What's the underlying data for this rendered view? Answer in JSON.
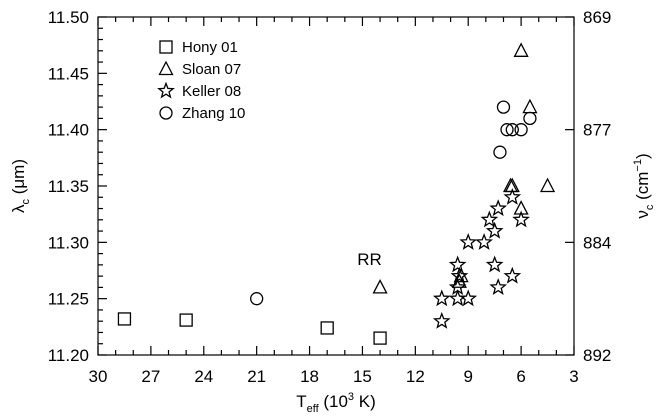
{
  "chart_data": {
    "type": "scatter",
    "x_axis": {
      "min": 30,
      "max": 3,
      "reversed": true,
      "ticks": [
        30,
        27,
        24,
        21,
        18,
        15,
        12,
        9,
        6,
        3
      ],
      "tick_labels": [
        "30",
        "27",
        "24",
        "21",
        "18",
        "15",
        "12",
        "9",
        "6",
        "3"
      ],
      "label": {
        "main": "T",
        "sub": "eff",
        "rest": " (10",
        "sup": "3",
        "end": " K)"
      }
    },
    "y_axis": {
      "min": 11.2,
      "max": 11.5,
      "ticks": [
        11.2,
        11.25,
        11.3,
        11.35,
        11.4,
        11.45,
        11.5
      ],
      "tick_labels": [
        "11.20",
        "11.25",
        "11.30",
        "11.35",
        "11.40",
        "11.45",
        "11.50"
      ],
      "label": {
        "main": "λ",
        "sub": "c",
        "rest": " (",
        "mu": "μ",
        "end": "m)"
      }
    },
    "y2_axis": {
      "tick_values_lambda": [
        11.2,
        11.3,
        11.4,
        11.5
      ],
      "tick_labels": [
        "892",
        "884",
        "877",
        "869"
      ],
      "label": {
        "main": "ν",
        "sub": "c",
        "rest": " (cm",
        "sup": "−1",
        "end": ")"
      }
    },
    "legend": {
      "placement": "top-left",
      "entries": [
        {
          "label": "Hony 01",
          "marker": "square"
        },
        {
          "label": "Sloan 07",
          "marker": "triangle"
        },
        {
          "label": "Keller 08",
          "marker": "star"
        },
        {
          "label": "Zhang 10",
          "marker": "circle"
        }
      ]
    },
    "annotations": [
      {
        "text": "RR",
        "x": 14.6,
        "y": 11.285
      }
    ],
    "series": [
      {
        "name": "Hony 01",
        "marker": "square",
        "points": [
          [
            28.5,
            11.232
          ],
          [
            25.0,
            11.231
          ],
          [
            17.0,
            11.224
          ],
          [
            14.0,
            11.215
          ]
        ]
      },
      {
        "name": "Sloan 07",
        "marker": "triangle",
        "points": [
          [
            6.0,
            11.47
          ],
          [
            5.5,
            11.42
          ],
          [
            4.5,
            11.35
          ],
          [
            6.5,
            11.35
          ],
          [
            6.6,
            11.35
          ],
          [
            6.0,
            11.33
          ],
          [
            9.4,
            11.27
          ],
          [
            9.5,
            11.265
          ],
          [
            14.0,
            11.26
          ]
        ]
      },
      {
        "name": "Keller 08",
        "marker": "star",
        "points": [
          [
            6.5,
            11.34
          ],
          [
            7.3,
            11.33
          ],
          [
            7.8,
            11.32
          ],
          [
            6.0,
            11.32
          ],
          [
            7.5,
            11.31
          ],
          [
            9.0,
            11.3
          ],
          [
            8.1,
            11.3
          ],
          [
            9.6,
            11.28
          ],
          [
            7.5,
            11.28
          ],
          [
            9.5,
            11.27
          ],
          [
            6.5,
            11.27
          ],
          [
            9.6,
            11.26
          ],
          [
            7.3,
            11.26
          ],
          [
            10.5,
            11.25
          ],
          [
            9.6,
            11.25
          ],
          [
            9.0,
            11.25
          ],
          [
            10.5,
            11.23
          ]
        ]
      },
      {
        "name": "Zhang 10",
        "marker": "circle",
        "points": [
          [
            21.0,
            11.25
          ],
          [
            7.0,
            11.42
          ],
          [
            5.5,
            11.41
          ],
          [
            6.8,
            11.4
          ],
          [
            6.5,
            11.4
          ],
          [
            6.0,
            11.4
          ],
          [
            7.2,
            11.38
          ]
        ]
      }
    ]
  }
}
